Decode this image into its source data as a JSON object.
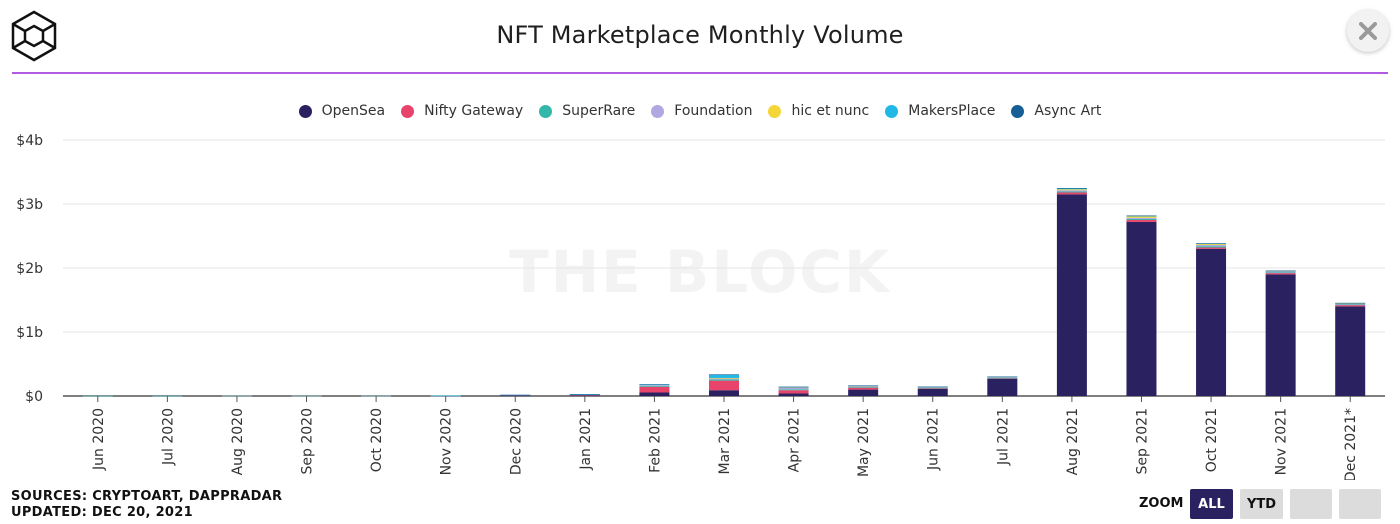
{
  "header": {
    "title": "NFT Marketplace Monthly Volume",
    "accent_color": "#b05be0",
    "logo_icon": "cube-logo-icon",
    "close_icon": "close-icon"
  },
  "watermark": "THE BLOCK",
  "footer": {
    "sources": "SOURCES: CRYPTOART, DAPPRADAR",
    "updated": "UPDATED: DEC 20, 2021"
  },
  "zoom": {
    "label": "ZOOM",
    "buttons": [
      {
        "label": "ALL",
        "active": true
      },
      {
        "label": "YTD",
        "active": false
      },
      {
        "label": "",
        "active": false
      },
      {
        "label": "",
        "active": false
      }
    ]
  },
  "chart_data": {
    "type": "bar",
    "stacked": true,
    "title": "NFT Marketplace Monthly Volume",
    "categories": [
      "Jun 2020",
      "Jul 2020",
      "Aug 2020",
      "Sep 2020",
      "Oct 2020",
      "Nov 2020",
      "Dec 2020",
      "Jan 2021",
      "Feb 2021",
      "Mar 2021",
      "Apr 2021",
      "May 2021",
      "Jun 2021",
      "Jul 2021",
      "Aug 2021",
      "Sep 2021",
      "Oct 2021",
      "Nov 2021",
      "Dec 2021*"
    ],
    "ylim": [
      0,
      4
    ],
    "yticks": [
      {
        "value": 0,
        "label": "$0"
      },
      {
        "value": 1,
        "label": "$1b"
      },
      {
        "value": 2,
        "label": "$2b"
      },
      {
        "value": 3,
        "label": "$3b"
      },
      {
        "value": 4,
        "label": "$4b"
      }
    ],
    "grid": true,
    "legend_position": "top-center",
    "series": [
      {
        "name": "OpenSea",
        "color": "#2a2160",
        "values": [
          0.002,
          0.002,
          0.003,
          0.002,
          0.002,
          0.003,
          0.008,
          0.01,
          0.055,
          0.09,
          0.04,
          0.1,
          0.11,
          0.27,
          3.15,
          2.72,
          2.3,
          1.9,
          1.4
        ]
      },
      {
        "name": "Nifty Gateway",
        "color": "#e8436a",
        "values": [
          0.0,
          0.0,
          0.001,
          0.001,
          0.001,
          0.002,
          0.006,
          0.012,
          0.09,
          0.15,
          0.05,
          0.03,
          0.01,
          0.01,
          0.03,
          0.03,
          0.02,
          0.02,
          0.02
        ]
      },
      {
        "name": "SuperRare",
        "color": "#33b7a8",
        "values": [
          0.001,
          0.001,
          0.001,
          0.001,
          0.001,
          0.001,
          0.003,
          0.003,
          0.015,
          0.02,
          0.015,
          0.01,
          0.008,
          0.005,
          0.015,
          0.015,
          0.02,
          0.01,
          0.01
        ]
      },
      {
        "name": "Foundation",
        "color": "#b0a8e0",
        "values": [
          0.0,
          0.0,
          0.0,
          0.0,
          0.0,
          0.0,
          0.0,
          0.0,
          0.01,
          0.02,
          0.03,
          0.015,
          0.01,
          0.01,
          0.02,
          0.02,
          0.02,
          0.015,
          0.015
        ]
      },
      {
        "name": "hic et nunc",
        "color": "#f5d638",
        "values": [
          0.0,
          0.0,
          0.0,
          0.0,
          0.0,
          0.0,
          0.0,
          0.0,
          0.0,
          0.002,
          0.003,
          0.004,
          0.004,
          0.004,
          0.015,
          0.02,
          0.015,
          0.008,
          0.004
        ]
      },
      {
        "name": "MakersPlace",
        "color": "#22b8e6",
        "values": [
          0.0,
          0.0,
          0.0,
          0.0,
          0.0,
          0.001,
          0.001,
          0.002,
          0.01,
          0.05,
          0.005,
          0.004,
          0.003,
          0.003,
          0.015,
          0.01,
          0.008,
          0.004,
          0.004
        ]
      },
      {
        "name": "Async Art",
        "color": "#165f96",
        "values": [
          0.0,
          0.0,
          0.0,
          0.0,
          0.0,
          0.0,
          0.001,
          0.001,
          0.004,
          0.006,
          0.003,
          0.002,
          0.002,
          0.002,
          0.005,
          0.005,
          0.004,
          0.003,
          0.003
        ]
      }
    ]
  }
}
